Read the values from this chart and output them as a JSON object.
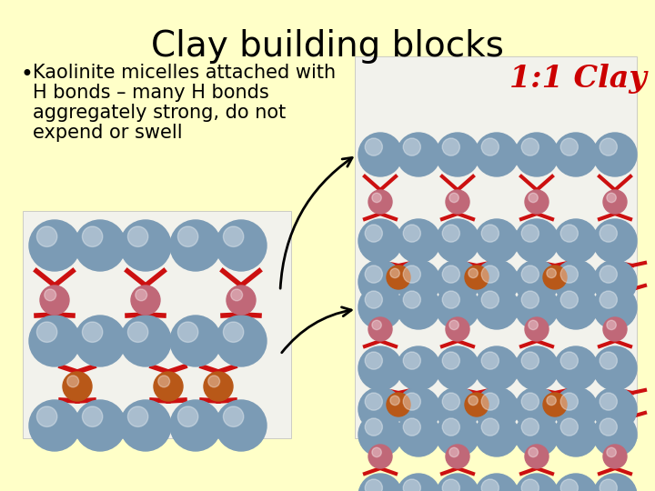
{
  "background_color": "#FFFFC8",
  "title": "Clay building blocks",
  "title_fontsize": 28,
  "title_color": "#000000",
  "bullet_lines": [
    "Kaolinite micelles attached with",
    "H bonds – many H bonds",
    "aggregately strong, do not",
    "expend or swell"
  ],
  "bullet_fontsize": 15,
  "bullet_color": "#000000",
  "label_11_clay": "1:1 Clay",
  "label_color": "#CC0000",
  "label_fontsize": 24,
  "bg_color": "#FFFFC8",
  "blue_gray": "#7B9BB5",
  "blue_gray_light": "#A8C4D8",
  "pink": "#C06878",
  "orange": "#B85818",
  "red": "#CC1010",
  "white_box": "#F8F8F8"
}
